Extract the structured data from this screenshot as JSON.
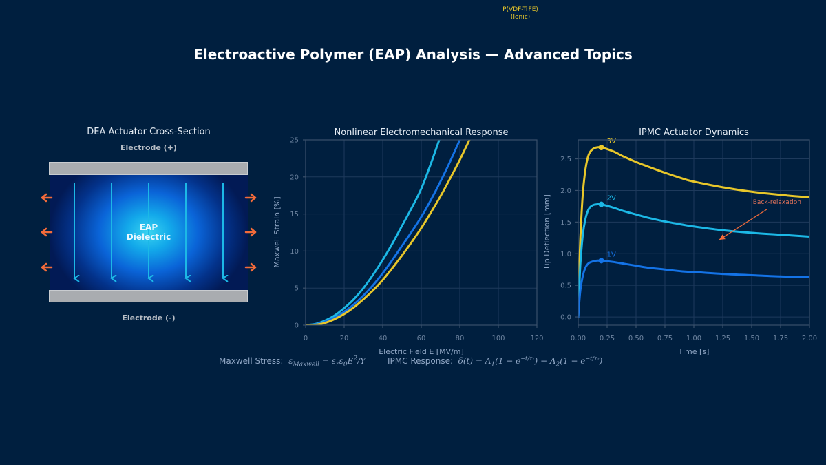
{
  "title": "Electroactive Polymer (EAP) Analysis — Advanced Topics",
  "stray_label": {
    "line1": "P(VDF-TrFE)",
    "line2": "(Ionic)"
  },
  "colors": {
    "background": "#001f3f",
    "cyan": "#1cb8e6",
    "blue": "#1473e6",
    "yellow": "#e8c72a",
    "orange": "#f26b3a",
    "grid": "#1e3a5c",
    "axis": "#3a506b",
    "tick_text": "#6d84a0",
    "electrode": "#a9acb0"
  },
  "dea_panel": {
    "title": "DEA Actuator Cross-Section",
    "top_electrode_label": "Electrode (+)",
    "bottom_electrode_label": "Electrode (-)",
    "dielectric_label_line1": "EAP",
    "dielectric_label_line2": "Dielectric",
    "field_arrow_count": 5,
    "expansion_arrow_rows": 3
  },
  "equations": {
    "maxwell_label": "Maxwell Stress:",
    "maxwell_formula": "ε_Maxwell = ε_r ε_0 E²/Y",
    "ipmc_label": "IPMC Response:",
    "ipmc_formula": "δ(t) = A₁(1 − e^(−t/τ₁)) − A₂(1 − e^(−t/τ₂))"
  },
  "chart_data": [
    {
      "type": "line",
      "title": "Nonlinear Electromechanical Response",
      "xlabel": "Electric Field E  [MV/m]",
      "ylabel": "Maxwell Strain  [%]",
      "xlim": [
        0,
        120
      ],
      "ylim": [
        0,
        25
      ],
      "xticks": [
        0,
        20,
        40,
        60,
        80,
        100,
        120
      ],
      "yticks": [
        0,
        5,
        10,
        15,
        20,
        25
      ],
      "grid": true,
      "legend": null,
      "x": [
        0,
        5,
        10,
        15,
        20,
        25,
        30,
        35,
        40,
        45,
        50,
        55,
        60,
        65,
        70,
        75,
        80,
        85,
        90
      ],
      "series": [
        {
          "name": "cyan",
          "color": "#1cb8e6",
          "values": [
            0,
            0.15,
            0.6,
            1.3,
            2.3,
            3.5,
            5.0,
            6.8,
            8.8,
            11.0,
            13.4,
            15.8,
            18.4,
            21.8,
            25.5,
            null,
            null,
            null,
            null
          ]
        },
        {
          "name": "blue",
          "color": "#1473e6",
          "values": [
            0,
            0.1,
            0.45,
            1.0,
            1.8,
            2.8,
            4.0,
            5.4,
            7.0,
            8.8,
            10.7,
            12.6,
            14.6,
            16.9,
            19.4,
            22.1,
            25.0,
            null,
            null
          ]
        },
        {
          "name": "yellow",
          "color": "#e8c72a",
          "values": [
            0,
            0.05,
            0.3,
            0.8,
            1.5,
            2.4,
            3.5,
            4.7,
            6.1,
            7.7,
            9.4,
            11.2,
            13.1,
            15.2,
            17.4,
            19.8,
            22.3,
            25.0,
            null
          ]
        }
      ]
    },
    {
      "type": "line",
      "title": "IPMC Actuator Dynamics",
      "xlabel": "Time  [s]",
      "ylabel": "Tip Deflection  [mm]",
      "xlim": [
        0,
        2.0
      ],
      "ylim": [
        -0.13,
        2.8
      ],
      "xticks": [
        "0.00",
        "0.25",
        "0.50",
        "0.75",
        "1.00",
        "1.25",
        "1.50",
        "1.75",
        "2.00"
      ],
      "yticks": [
        "0.0",
        "0.5",
        "1.0",
        "1.5",
        "2.0",
        "2.5"
      ],
      "grid": true,
      "x": [
        0,
        0.01,
        0.02,
        0.04,
        0.06,
        0.08,
        0.1,
        0.13,
        0.16,
        0.2,
        0.3,
        0.4,
        0.5,
        0.6,
        0.75,
        0.9,
        1.0,
        1.25,
        1.5,
        1.75,
        2.0
      ],
      "series": [
        {
          "name": "3V",
          "color": "#e8c72a",
          "values": [
            0,
            0.75,
            1.3,
            1.95,
            2.3,
            2.5,
            2.6,
            2.66,
            2.68,
            2.68,
            2.62,
            2.53,
            2.45,
            2.38,
            2.28,
            2.19,
            2.14,
            2.05,
            1.98,
            1.93,
            1.89
          ]
        },
        {
          "name": "2V",
          "color": "#1cb8e6",
          "values": [
            0,
            0.5,
            0.87,
            1.3,
            1.53,
            1.66,
            1.73,
            1.77,
            1.78,
            1.78,
            1.73,
            1.67,
            1.62,
            1.57,
            1.51,
            1.46,
            1.43,
            1.37,
            1.33,
            1.3,
            1.27
          ]
        },
        {
          "name": "1V",
          "color": "#1473e6",
          "values": [
            0,
            0.25,
            0.44,
            0.65,
            0.77,
            0.83,
            0.86,
            0.88,
            0.89,
            0.89,
            0.87,
            0.84,
            0.81,
            0.78,
            0.75,
            0.72,
            0.71,
            0.68,
            0.66,
            0.64,
            0.63
          ]
        }
      ],
      "peak_markers": [
        {
          "label": "3V",
          "x": 0.2,
          "y": 2.68
        },
        {
          "label": "2V",
          "x": 0.2,
          "y": 1.78
        },
        {
          "label": "1V",
          "x": 0.2,
          "y": 0.89
        }
      ],
      "annotations": [
        {
          "text": "Back-relaxation",
          "color": "#f26b3a",
          "from": [
            1.63,
            1.7
          ],
          "to": [
            1.22,
            1.22
          ]
        }
      ]
    }
  ]
}
